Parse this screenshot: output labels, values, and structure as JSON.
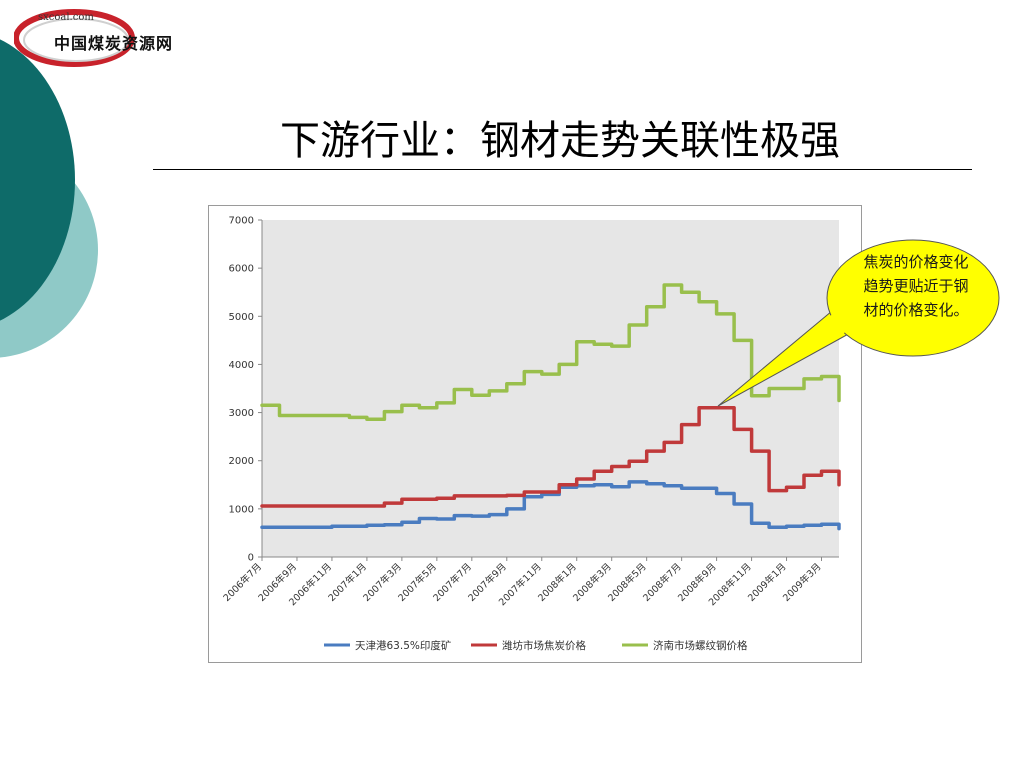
{
  "logo": {
    "url": "sxcoal.com",
    "name": "中国煤炭资源网"
  },
  "slide": {
    "title": "下游行业：钢材走势关联性极强",
    "callout": "焦炭的价格变化趋势更贴近于钢材的价格变化。"
  },
  "colors": {
    "teal_dark": "#0e6b69",
    "teal_light": "#8fc9c7",
    "series_blue": "#4a7cc0",
    "series_red": "#c0393a",
    "series_green": "#99bf4c",
    "callout_fill": "#ffff00"
  },
  "chart_data": {
    "type": "line",
    "ylim": [
      0,
      7000
    ],
    "yticks": [
      0,
      1000,
      2000,
      3000,
      4000,
      5000,
      6000,
      7000
    ],
    "x_range": [
      "2006-07",
      "2009-04"
    ],
    "x_tick_labels": [
      "2006年7月",
      "2006年9月",
      "2006年11月",
      "2007年1月",
      "2007年3月",
      "2007年5月",
      "2007年7月",
      "2007年9月",
      "2007年11月",
      "2008年1月",
      "2008年3月",
      "2008年5月",
      "2008年7月",
      "2008年9月",
      "2008年11月",
      "2009年1月",
      "2009年3月"
    ],
    "x_tick_dates": [
      "2006-07",
      "2006-09",
      "2006-11",
      "2007-01",
      "2007-03",
      "2007-05",
      "2007-07",
      "2007-09",
      "2007-11",
      "2008-01",
      "2008-03",
      "2008-05",
      "2008-07",
      "2008-09",
      "2008-11",
      "2009-01",
      "2009-03"
    ],
    "legend_position": "bottom",
    "series": [
      {
        "name": "天津港63.5%印度矿",
        "color": "#4a7cc0",
        "points": [
          [
            "2006-07",
            620
          ],
          [
            "2006-10",
            620
          ],
          [
            "2006-11",
            640
          ],
          [
            "2006-12",
            640
          ],
          [
            "2007-01",
            660
          ],
          [
            "2007-02",
            670
          ],
          [
            "2007-03",
            720
          ],
          [
            "2007-04",
            800
          ],
          [
            "2007-05",
            790
          ],
          [
            "2007-06",
            860
          ],
          [
            "2007-07",
            850
          ],
          [
            "2007-08",
            880
          ],
          [
            "2007-09",
            1000
          ],
          [
            "2007-10",
            1250
          ],
          [
            "2007-11",
            1300
          ],
          [
            "2007-12",
            1450
          ],
          [
            "2008-01",
            1480
          ],
          [
            "2008-02",
            1500
          ],
          [
            "2008-03",
            1460
          ],
          [
            "2008-04",
            1560
          ],
          [
            "2008-05",
            1520
          ],
          [
            "2008-06",
            1480
          ],
          [
            "2008-07",
            1430
          ],
          [
            "2008-08",
            1430
          ],
          [
            "2008-09",
            1320
          ],
          [
            "2008-10",
            1100
          ],
          [
            "2008-11",
            700
          ],
          [
            "2008-12",
            620
          ],
          [
            "2009-01",
            640
          ],
          [
            "2009-02",
            660
          ],
          [
            "2009-03",
            680
          ],
          [
            "2009-04",
            590
          ]
        ]
      },
      {
        "name": "潍坊市场焦炭价格",
        "color": "#c0393a",
        "points": [
          [
            "2006-07",
            1060
          ],
          [
            "2007-01",
            1060
          ],
          [
            "2007-02",
            1120
          ],
          [
            "2007-03",
            1200
          ],
          [
            "2007-05",
            1220
          ],
          [
            "2007-06",
            1270
          ],
          [
            "2007-09",
            1280
          ],
          [
            "2007-10",
            1350
          ],
          [
            "2007-12",
            1500
          ],
          [
            "2008-01",
            1620
          ],
          [
            "2008-02",
            1780
          ],
          [
            "2008-03",
            1880
          ],
          [
            "2008-04",
            1990
          ],
          [
            "2008-05",
            2200
          ],
          [
            "2008-06",
            2380
          ],
          [
            "2008-07",
            2750
          ],
          [
            "2008-08",
            3100
          ],
          [
            "2008-09",
            3100
          ],
          [
            "2008-10",
            2650
          ],
          [
            "2008-11",
            2200
          ],
          [
            "2008-12",
            1380
          ],
          [
            "2009-01",
            1450
          ],
          [
            "2009-02",
            1700
          ],
          [
            "2009-03",
            1780
          ],
          [
            "2009-04",
            1500
          ]
        ]
      },
      {
        "name": "济南市场螺纹钢价格",
        "color": "#99bf4c",
        "points": [
          [
            "2006-07",
            3150
          ],
          [
            "2006-08",
            2940
          ],
          [
            "2006-10",
            2940
          ],
          [
            "2006-12",
            2900
          ],
          [
            "2007-01",
            2860
          ],
          [
            "2007-02",
            3020
          ],
          [
            "2007-03",
            3150
          ],
          [
            "2007-04",
            3100
          ],
          [
            "2007-05",
            3200
          ],
          [
            "2007-06",
            3480
          ],
          [
            "2007-07",
            3360
          ],
          [
            "2007-08",
            3450
          ],
          [
            "2007-09",
            3600
          ],
          [
            "2007-10",
            3850
          ],
          [
            "2007-11",
            3800
          ],
          [
            "2007-12",
            4000
          ],
          [
            "2008-01",
            4470
          ],
          [
            "2008-02",
            4420
          ],
          [
            "2008-03",
            4380
          ],
          [
            "2008-04",
            4820
          ],
          [
            "2008-05",
            5200
          ],
          [
            "2008-06",
            5650
          ],
          [
            "2008-07",
            5500
          ],
          [
            "2008-08",
            5300
          ],
          [
            "2008-09",
            5050
          ],
          [
            "2008-10",
            4500
          ],
          [
            "2008-11",
            3350
          ],
          [
            "2008-12",
            3500
          ],
          [
            "2009-01",
            3500
          ],
          [
            "2009-02",
            3700
          ],
          [
            "2009-03",
            3750
          ],
          [
            "2009-04",
            3250
          ]
        ]
      }
    ]
  }
}
